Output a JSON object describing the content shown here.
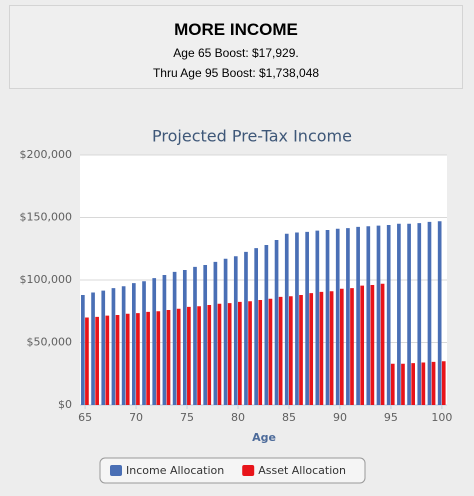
{
  "header": {
    "title": "MORE INCOME",
    "lines": [
      "Age 65 Boost: $17,929.",
      "Thru Age 95 Boost: $1,738,048"
    ]
  },
  "chart_data": {
    "type": "bar",
    "title": "Projected Pre-Tax Income",
    "x_label": "Age",
    "x": [
      65,
      66,
      67,
      68,
      69,
      70,
      71,
      72,
      73,
      74,
      75,
      76,
      77,
      78,
      79,
      80,
      81,
      82,
      83,
      84,
      85,
      86,
      87,
      88,
      89,
      90,
      91,
      92,
      93,
      94,
      95,
      96,
      97,
      98,
      99,
      100
    ],
    "xlim": [
      64.5,
      100.5
    ],
    "xticks": [
      65,
      70,
      75,
      80,
      85,
      90,
      95,
      100
    ],
    "ylim": [
      0,
      200000
    ],
    "yticks": [
      {
        "value": 0,
        "label": "$0"
      },
      {
        "value": 50000,
        "label": "$50,000"
      },
      {
        "value": 100000,
        "label": "$100,000"
      },
      {
        "value": 150000,
        "label": "$150,000"
      },
      {
        "value": 200000,
        "label": "$200,000"
      }
    ],
    "grid": true,
    "legend": "bottom",
    "series": [
      {
        "name": "Income Allocation",
        "color": "#4a6fb5",
        "values": [
          88000,
          90000,
          91500,
          93500,
          95000,
          97500,
          99000,
          101500,
          104000,
          106500,
          108000,
          110500,
          112000,
          114500,
          117000,
          119000,
          122500,
          125500,
          128000,
          132000,
          137000,
          138000,
          138500,
          139500,
          140000,
          141000,
          141500,
          142500,
          143000,
          143500,
          144000,
          145000,
          145000,
          145500,
          146500,
          147000
        ]
      },
      {
        "name": "Asset Allocation",
        "color": "#e8141a",
        "values": [
          70000,
          70500,
          71500,
          72000,
          73000,
          73500,
          74500,
          75000,
          76000,
          77000,
          78500,
          79000,
          80000,
          81000,
          81500,
          82500,
          83000,
          84000,
          85000,
          86500,
          87000,
          88000,
          89500,
          90500,
          91000,
          93000,
          93500,
          95500,
          96000,
          97000,
          33000,
          33000,
          33500,
          34000,
          34500,
          35000
        ]
      }
    ]
  }
}
